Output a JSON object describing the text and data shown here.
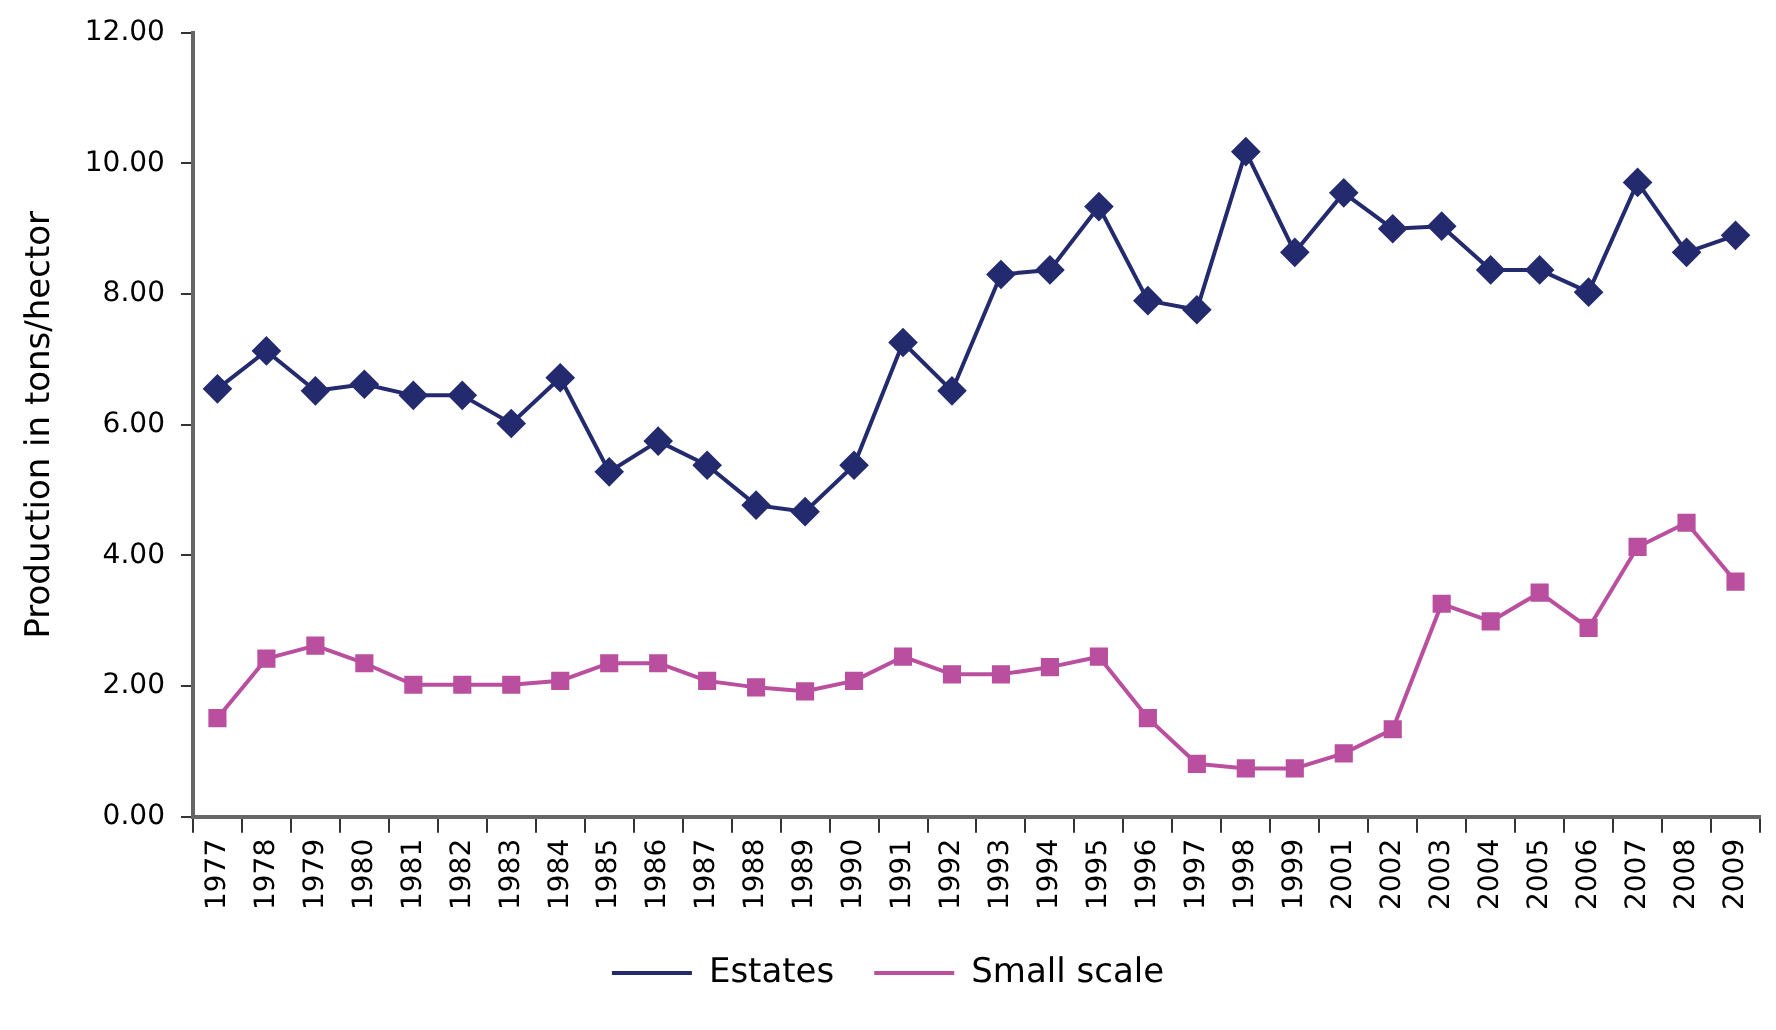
{
  "chart_data": {
    "type": "line",
    "ylabel": "Production in tons/hector",
    "categories": [
      "1977",
      "1978",
      "1979",
      "1980",
      "1981",
      "1982",
      "1983",
      "1984",
      "1985",
      "1986",
      "1987",
      "1988",
      "1989",
      "1990",
      "1991",
      "1992",
      "1993",
      "1994",
      "1995",
      "1996",
      "1997",
      "1998",
      "1999",
      "2001",
      "2002",
      "2003",
      "2004",
      "2005",
      "2006",
      "2007",
      "2008",
      "2009"
    ],
    "series": [
      {
        "name": "Estates",
        "color": "#232b6e",
        "marker": "diamond",
        "values": [
          6.55,
          7.13,
          6.52,
          6.62,
          6.45,
          6.45,
          6.02,
          6.72,
          5.28,
          5.75,
          5.38,
          4.77,
          4.67,
          5.38,
          7.26,
          6.52,
          8.3,
          8.37,
          9.34,
          7.9,
          7.76,
          10.18,
          8.64,
          9.55,
          9.0,
          9.04,
          8.37,
          8.37,
          8.03,
          9.71,
          8.64,
          8.9
        ]
      },
      {
        "name": "Small scale",
        "color": "#b94f9e",
        "marker": "square",
        "values": [
          1.51,
          2.42,
          2.62,
          2.35,
          2.02,
          2.02,
          2.02,
          2.08,
          2.35,
          2.35,
          2.08,
          1.98,
          1.92,
          2.08,
          2.45,
          2.18,
          2.18,
          2.29,
          2.45,
          1.51,
          0.81,
          0.74,
          0.74,
          0.97,
          1.34,
          3.26,
          2.99,
          3.43,
          2.89,
          4.13,
          4.5,
          3.6
        ]
      }
    ],
    "ylim": [
      0,
      12
    ],
    "yticks": [
      {
        "value": 0,
        "label": "0.00"
      },
      {
        "value": 2,
        "label": "2.00"
      },
      {
        "value": 4,
        "label": "4.00"
      },
      {
        "value": 6,
        "label": "6.00"
      },
      {
        "value": 8,
        "label": "8.00"
      },
      {
        "value": 10,
        "label": "10.00"
      },
      {
        "value": 12,
        "label": "12.00"
      }
    ],
    "grid": false,
    "legend": "bottom",
    "line_style": "solid"
  }
}
